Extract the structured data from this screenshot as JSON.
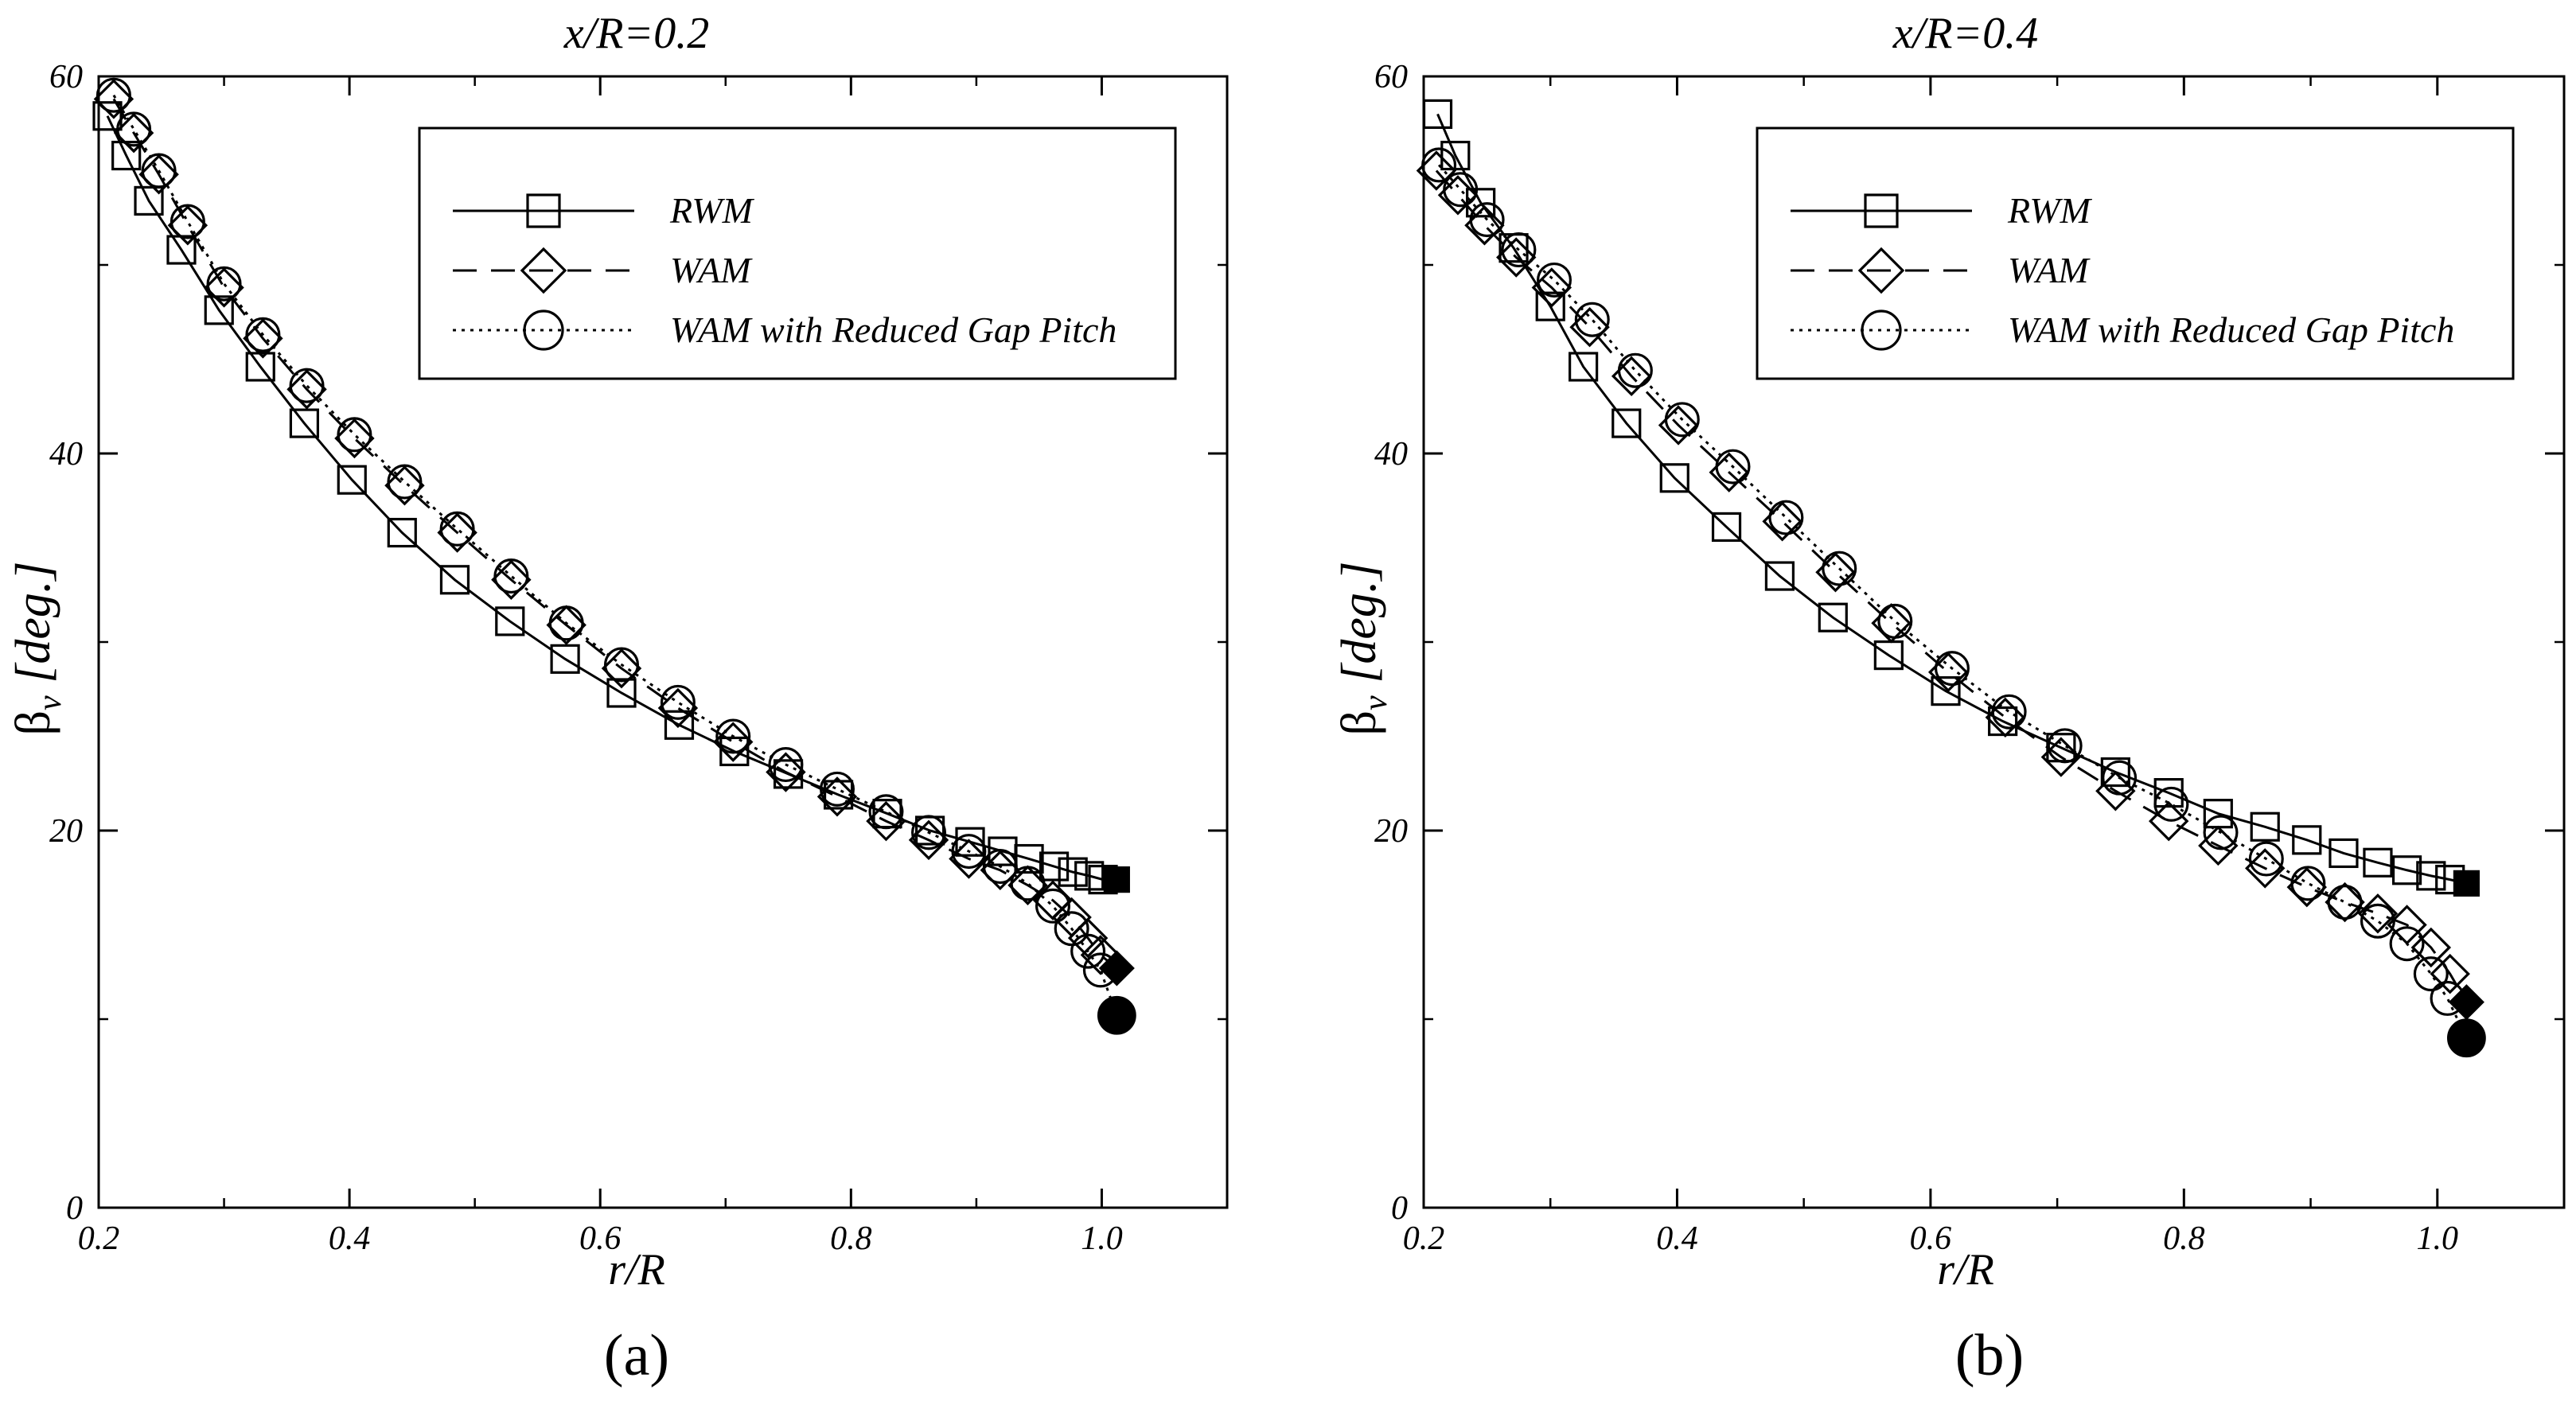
{
  "chart_data": [
    {
      "type": "line",
      "panel_label": "(a)",
      "title": "x/R=0.2",
      "xlabel": "r/R",
      "ylabel_main": "β",
      "ylabel_sub": "v",
      "ylabel_unit": " [deg.]",
      "xlim": [
        0.2,
        1.1
      ],
      "ylim": [
        0,
        60
      ],
      "xticks": [
        0.2,
        0.4,
        0.6,
        0.8,
        1.0
      ],
      "xtick_labels": [
        "0.2",
        "0.4",
        "0.6",
        "0.8",
        "1.0"
      ],
      "yticks": [
        0,
        20,
        40,
        60
      ],
      "ytick_labels": [
        "0",
        "20",
        "40",
        "60"
      ],
      "grid": false,
      "legend_position": "top-right",
      "series": [
        {
          "name": "RWM",
          "marker": "square",
          "line": "solid",
          "x": [
            0.207,
            0.222,
            0.24,
            0.266,
            0.296,
            0.329,
            0.364,
            0.402,
            0.442,
            0.484,
            0.528,
            0.572,
            0.617,
            0.663,
            0.707,
            0.75,
            0.79,
            0.829,
            0.863,
            0.895,
            0.921,
            0.942,
            0.962,
            0.977,
            0.99,
            1.001
          ],
          "y": [
            57.9,
            55.8,
            53.4,
            50.8,
            47.6,
            44.6,
            41.6,
            38.6,
            35.8,
            33.3,
            31.1,
            29.1,
            27.3,
            25.6,
            24.2,
            23.0,
            21.9,
            20.9,
            20.0,
            19.4,
            18.9,
            18.5,
            18.1,
            17.8,
            17.6,
            17.4
          ],
          "tip": {
            "x": 1.012,
            "y": 17.4
          }
        },
        {
          "name": "WAM",
          "marker": "diamond",
          "line": "dashed",
          "x": [
            0.212,
            0.228,
            0.248,
            0.271,
            0.3,
            0.331,
            0.366,
            0.404,
            0.444,
            0.486,
            0.529,
            0.573,
            0.617,
            0.662,
            0.706,
            0.748,
            0.789,
            0.828,
            0.862,
            0.894,
            0.919,
            0.941,
            0.961,
            0.976,
            0.989,
            0.999
          ],
          "y": [
            58.8,
            57.0,
            54.8,
            52.1,
            48.8,
            46.1,
            43.4,
            40.8,
            38.3,
            35.8,
            33.3,
            30.9,
            28.6,
            26.5,
            24.7,
            23.1,
            21.8,
            20.5,
            19.5,
            18.5,
            17.9,
            17.1,
            16.3,
            15.4,
            14.3,
            13.4
          ],
          "tip": {
            "x": 1.012,
            "y": 12.7
          }
        },
        {
          "name": "WAM with Reduced Gap Pitch",
          "marker": "circle",
          "line": "dotted",
          "x": [
            0.212,
            0.228,
            0.248,
            0.271,
            0.3,
            0.331,
            0.366,
            0.404,
            0.444,
            0.486,
            0.529,
            0.573,
            0.617,
            0.662,
            0.706,
            0.748,
            0.789,
            0.828,
            0.862,
            0.894,
            0.919,
            0.941,
            0.961,
            0.976,
            0.989,
            0.999
          ],
          "y": [
            59.0,
            57.2,
            55.0,
            52.3,
            49.0,
            46.3,
            43.6,
            41.0,
            38.5,
            36.0,
            33.5,
            31.0,
            28.8,
            26.8,
            25.0,
            23.5,
            22.2,
            21.0,
            19.9,
            18.9,
            18.1,
            17.2,
            16.0,
            14.8,
            13.6,
            12.6
          ],
          "tip": {
            "x": 1.012,
            "y": 10.2
          }
        }
      ]
    },
    {
      "type": "line",
      "panel_label": "(b)",
      "title": "x/R=0.4",
      "xlabel": "r/R",
      "ylabel_main": "β",
      "ylabel_sub": "v",
      "ylabel_unit": " [deg.]",
      "xlim": [
        0.2,
        1.1
      ],
      "ylim": [
        0,
        60
      ],
      "xticks": [
        0.2,
        0.4,
        0.6,
        0.8,
        1.0
      ],
      "xtick_labels": [
        "0.2",
        "0.4",
        "0.6",
        "0.8",
        "1.0"
      ],
      "yticks": [
        0,
        20,
        40,
        60
      ],
      "ytick_labels": [
        "0",
        "20",
        "40",
        "60"
      ],
      "grid": false,
      "legend_position": "top-right",
      "series": [
        {
          "name": "RWM",
          "marker": "square",
          "line": "solid",
          "x": [
            0.211,
            0.225,
            0.245,
            0.271,
            0.3,
            0.326,
            0.36,
            0.398,
            0.439,
            0.481,
            0.523,
            0.567,
            0.612,
            0.657,
            0.703,
            0.746,
            0.788,
            0.827,
            0.864,
            0.897,
            0.926,
            0.953,
            0.976,
            0.995,
            1.01
          ],
          "y": [
            58.0,
            55.8,
            53.3,
            50.9,
            47.8,
            44.6,
            41.6,
            38.7,
            36.1,
            33.5,
            31.3,
            29.3,
            27.4,
            25.8,
            24.4,
            23.1,
            22.0,
            20.9,
            20.2,
            19.5,
            18.8,
            18.3,
            17.9,
            17.6,
            17.4
          ],
          "tip": {
            "x": 1.023,
            "y": 17.2
          }
        },
        {
          "name": "WAM",
          "marker": "diamond",
          "line": "dashed",
          "x": [
            0.21,
            0.227,
            0.248,
            0.273,
            0.301,
            0.331,
            0.364,
            0.401,
            0.441,
            0.483,
            0.525,
            0.569,
            0.614,
            0.659,
            0.703,
            0.746,
            0.788,
            0.827,
            0.864,
            0.897,
            0.927,
            0.953,
            0.976,
            0.995,
            1.01
          ],
          "y": [
            55.0,
            53.7,
            52.1,
            50.4,
            48.8,
            46.7,
            44.1,
            41.5,
            39.0,
            36.4,
            33.7,
            31.0,
            28.4,
            26.0,
            23.9,
            22.1,
            20.5,
            19.2,
            18.0,
            17.0,
            16.2,
            15.6,
            15.0,
            13.8,
            12.4
          ],
          "tip": {
            "x": 1.023,
            "y": 10.9
          }
        },
        {
          "name": "WAM with Reduced Gap Pitch",
          "marker": "circle",
          "line": "dotted",
          "x": [
            0.212,
            0.229,
            0.25,
            0.275,
            0.303,
            0.333,
            0.367,
            0.404,
            0.444,
            0.486,
            0.528,
            0.572,
            0.617,
            0.662,
            0.706,
            0.749,
            0.79,
            0.829,
            0.865,
            0.898,
            0.927,
            0.953,
            0.976,
            0.995,
            1.008
          ],
          "y": [
            55.3,
            54.0,
            52.4,
            50.8,
            49.2,
            47.1,
            44.4,
            41.8,
            39.3,
            36.6,
            33.9,
            31.1,
            28.6,
            26.3,
            24.5,
            22.8,
            21.4,
            19.9,
            18.5,
            17.2,
            16.2,
            15.2,
            14.0,
            12.4,
            11.1
          ],
          "tip": {
            "x": 1.023,
            "y": 9.0
          }
        }
      ]
    }
  ]
}
